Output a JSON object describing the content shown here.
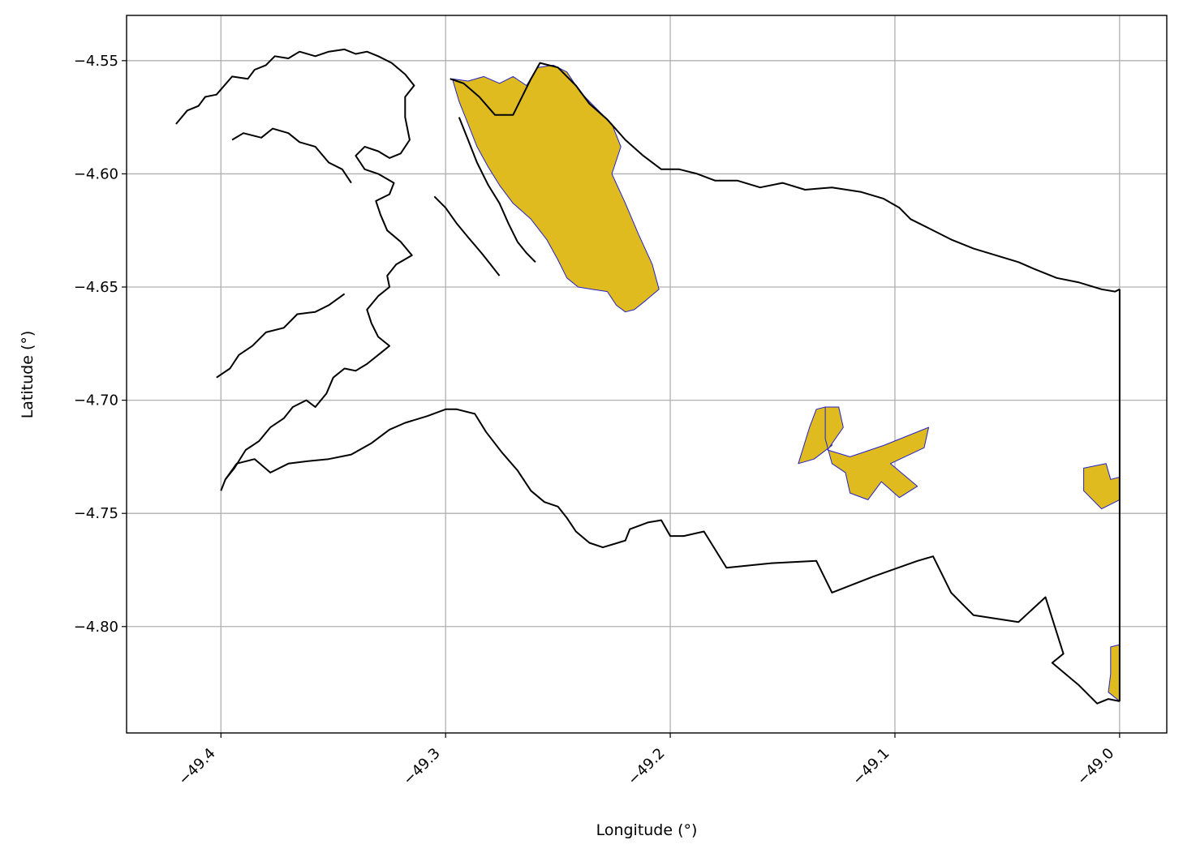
{
  "colors": {
    "polygon_fill": "#dfbb1f",
    "polygon_edge": "#2222cc",
    "outline": "#000000",
    "grid": "#b0b0b0"
  },
  "chart_data": {
    "type": "map",
    "xlabel": "Longitude (°)",
    "ylabel": "Latitude (°)",
    "xlim": [
      -49.442,
      -48.979
    ],
    "ylim": [
      -4.847,
      -4.53
    ],
    "grid": true,
    "x_ticks": [
      {
        "value": -49.4,
        "label": "−49.4"
      },
      {
        "value": -49.3,
        "label": "−49.3"
      },
      {
        "value": -49.2,
        "label": "−49.2"
      },
      {
        "value": -49.1,
        "label": "−49.1"
      },
      {
        "value": -49.0,
        "label": "−49.0"
      }
    ],
    "y_ticks": [
      {
        "value": -4.55,
        "label": "−4.55"
      },
      {
        "value": -4.6,
        "label": "−4.60"
      },
      {
        "value": -4.65,
        "label": "−4.65"
      },
      {
        "value": -4.7,
        "label": "−4.70"
      },
      {
        "value": -4.75,
        "label": "−4.75"
      },
      {
        "value": -4.8,
        "label": "−4.80"
      }
    ],
    "outlines": [
      {
        "name": "boundary-top",
        "points": [
          [
            -49.298,
            -4.558
          ],
          [
            -49.292,
            -4.56
          ],
          [
            -49.285,
            -4.566
          ],
          [
            -49.278,
            -4.574
          ],
          [
            -49.27,
            -4.574
          ],
          [
            -49.262,
            -4.558
          ],
          [
            -49.258,
            -4.551
          ],
          [
            -49.25,
            -4.553
          ],
          [
            -49.242,
            -4.561
          ],
          [
            -49.236,
            -4.569
          ],
          [
            -49.228,
            -4.576
          ],
          [
            -49.22,
            -4.585
          ],
          [
            -49.212,
            -4.592
          ],
          [
            -49.204,
            -4.598
          ],
          [
            -49.196,
            -4.598
          ],
          [
            -49.188,
            -4.6
          ],
          [
            -49.18,
            -4.603
          ],
          [
            -49.17,
            -4.603
          ],
          [
            -49.16,
            -4.606
          ],
          [
            -49.15,
            -4.604
          ],
          [
            -49.14,
            -4.607
          ],
          [
            -49.128,
            -4.606
          ],
          [
            -49.115,
            -4.608
          ],
          [
            -49.105,
            -4.611
          ],
          [
            -49.098,
            -4.615
          ],
          [
            -49.093,
            -4.62
          ],
          [
            -49.085,
            -4.624
          ],
          [
            -49.075,
            -4.629
          ],
          [
            -49.065,
            -4.633
          ],
          [
            -49.055,
            -4.636
          ],
          [
            -49.045,
            -4.639
          ],
          [
            -49.038,
            -4.642
          ],
          [
            -49.028,
            -4.646
          ],
          [
            -49.018,
            -4.648
          ],
          [
            -49.008,
            -4.651
          ],
          [
            -49.002,
            -4.652
          ],
          [
            -49.0,
            -4.651
          ]
        ]
      },
      {
        "name": "boundary-east",
        "points": [
          [
            -49.0,
            -4.651
          ],
          [
            -49.0,
            -4.833
          ]
        ]
      },
      {
        "name": "boundary-bottom",
        "points": [
          [
            -49.4,
            -4.74
          ],
          [
            -49.398,
            -4.735
          ],
          [
            -49.393,
            -4.728
          ],
          [
            -49.385,
            -4.726
          ],
          [
            -49.378,
            -4.732
          ],
          [
            -49.37,
            -4.728
          ],
          [
            -49.362,
            -4.727
          ],
          [
            -49.352,
            -4.726
          ],
          [
            -49.342,
            -4.724
          ],
          [
            -49.333,
            -4.719
          ],
          [
            -49.325,
            -4.713
          ],
          [
            -49.318,
            -4.71
          ],
          [
            -49.308,
            -4.707
          ],
          [
            -49.3,
            -4.704
          ],
          [
            -49.295,
            -4.704
          ],
          [
            -49.287,
            -4.706
          ],
          [
            -49.282,
            -4.714
          ],
          [
            -49.275,
            -4.723
          ],
          [
            -49.268,
            -4.731
          ],
          [
            -49.262,
            -4.74
          ],
          [
            -49.256,
            -4.745
          ],
          [
            -49.25,
            -4.747
          ],
          [
            -49.246,
            -4.752
          ],
          [
            -49.242,
            -4.758
          ],
          [
            -49.236,
            -4.763
          ],
          [
            -49.23,
            -4.765
          ],
          [
            -49.22,
            -4.762
          ],
          [
            -49.218,
            -4.757
          ],
          [
            -49.21,
            -4.754
          ],
          [
            -49.204,
            -4.753
          ],
          [
            -49.2,
            -4.76
          ],
          [
            -49.194,
            -4.76
          ],
          [
            -49.185,
            -4.758
          ],
          [
            -49.175,
            -4.774
          ],
          [
            -49.155,
            -4.772
          ],
          [
            -49.135,
            -4.771
          ],
          [
            -49.128,
            -4.785
          ],
          [
            -49.11,
            -4.778
          ],
          [
            -49.09,
            -4.771
          ],
          [
            -49.083,
            -4.769
          ],
          [
            -49.075,
            -4.785
          ],
          [
            -49.07,
            -4.79
          ],
          [
            -49.065,
            -4.795
          ],
          [
            -49.045,
            -4.798
          ],
          [
            -49.033,
            -4.787
          ],
          [
            -49.025,
            -4.812
          ],
          [
            -49.03,
            -4.816
          ],
          [
            -49.018,
            -4.826
          ],
          [
            -49.01,
            -4.834
          ],
          [
            -49.005,
            -4.832
          ],
          [
            -49.0,
            -4.833
          ]
        ]
      },
      {
        "name": "drainage-west",
        "points": [
          [
            -49.42,
            -4.578
          ],
          [
            -49.415,
            -4.572
          ],
          [
            -49.41,
            -4.57
          ],
          [
            -49.407,
            -4.566
          ],
          [
            -49.402,
            -4.565
          ],
          [
            -49.395,
            -4.557
          ],
          [
            -49.388,
            -4.558
          ],
          [
            -49.385,
            -4.554
          ],
          [
            -49.38,
            -4.552
          ],
          [
            -49.376,
            -4.548
          ],
          [
            -49.37,
            -4.549
          ],
          [
            -49.365,
            -4.546
          ],
          [
            -49.358,
            -4.548
          ],
          [
            -49.352,
            -4.546
          ],
          [
            -49.345,
            -4.545
          ],
          [
            -49.34,
            -4.547
          ],
          [
            -49.335,
            -4.546
          ],
          [
            -49.33,
            -4.548
          ],
          [
            -49.324,
            -4.551
          ],
          [
            -49.318,
            -4.556
          ],
          [
            -49.314,
            -4.561
          ],
          [
            -49.318,
            -4.566
          ],
          [
            -49.318,
            -4.575
          ],
          [
            -49.316,
            -4.585
          ],
          [
            -49.32,
            -4.591
          ],
          [
            -49.325,
            -4.593
          ],
          [
            -49.33,
            -4.59
          ],
          [
            -49.336,
            -4.588
          ],
          [
            -49.34,
            -4.592
          ],
          [
            -49.336,
            -4.598
          ],
          [
            -49.33,
            -4.6
          ],
          [
            -49.323,
            -4.604
          ],
          [
            -49.325,
            -4.609
          ],
          [
            -49.331,
            -4.612
          ],
          [
            -49.329,
            -4.618
          ],
          [
            -49.326,
            -4.625
          ],
          [
            -49.32,
            -4.63
          ],
          [
            -49.315,
            -4.636
          ],
          [
            -49.322,
            -4.64
          ],
          [
            -49.326,
            -4.645
          ],
          [
            -49.325,
            -4.65
          ],
          [
            -49.33,
            -4.654
          ],
          [
            -49.335,
            -4.66
          ],
          [
            -49.333,
            -4.666
          ],
          [
            -49.33,
            -4.672
          ],
          [
            -49.325,
            -4.676
          ],
          [
            -49.33,
            -4.68
          ],
          [
            -49.335,
            -4.684
          ],
          [
            -49.34,
            -4.687
          ],
          [
            -49.345,
            -4.686
          ],
          [
            -49.35,
            -4.69
          ],
          [
            -49.353,
            -4.697
          ],
          [
            -49.358,
            -4.703
          ],
          [
            -49.362,
            -4.7
          ],
          [
            -49.368,
            -4.703
          ],
          [
            -49.372,
            -4.708
          ],
          [
            -49.378,
            -4.712
          ],
          [
            -49.383,
            -4.718
          ],
          [
            -49.389,
            -4.722
          ],
          [
            -49.394,
            -4.73
          ],
          [
            -49.398,
            -4.735
          ]
        ]
      },
      {
        "name": "drainage-west-2",
        "points": [
          [
            -49.395,
            -4.585
          ],
          [
            -49.39,
            -4.582
          ],
          [
            -49.382,
            -4.584
          ],
          [
            -49.377,
            -4.58
          ],
          [
            -49.37,
            -4.582
          ],
          [
            -49.365,
            -4.586
          ],
          [
            -49.358,
            -4.588
          ],
          [
            -49.352,
            -4.595
          ],
          [
            -49.346,
            -4.598
          ],
          [
            -49.342,
            -4.604
          ]
        ]
      },
      {
        "name": "drainage-west-3",
        "points": [
          [
            -49.402,
            -4.69
          ],
          [
            -49.396,
            -4.686
          ],
          [
            -49.392,
            -4.68
          ],
          [
            -49.386,
            -4.676
          ],
          [
            -49.38,
            -4.67
          ],
          [
            -49.372,
            -4.668
          ],
          [
            -49.366,
            -4.662
          ],
          [
            -49.358,
            -4.661
          ],
          [
            -49.352,
            -4.658
          ],
          [
            -49.345,
            -4.653
          ]
        ]
      },
      {
        "name": "drainage-middle",
        "points": [
          [
            -49.294,
            -4.575
          ],
          [
            -49.29,
            -4.585
          ],
          [
            -49.286,
            -4.595
          ],
          [
            -49.281,
            -4.605
          ],
          [
            -49.276,
            -4.613
          ],
          [
            -49.272,
            -4.622
          ],
          [
            -49.268,
            -4.63
          ],
          [
            -49.264,
            -4.635
          ],
          [
            -49.26,
            -4.639
          ]
        ]
      },
      {
        "name": "drainage-middle-2",
        "points": [
          [
            -49.305,
            -4.61
          ],
          [
            -49.3,
            -4.615
          ],
          [
            -49.295,
            -4.622
          ],
          [
            -49.29,
            -4.628
          ],
          [
            -49.284,
            -4.635
          ],
          [
            -49.28,
            -4.64
          ],
          [
            -49.276,
            -4.645
          ]
        ]
      }
    ],
    "polygons": [
      {
        "name": "area-north",
        "points": [
          [
            -49.297,
            -4.558
          ],
          [
            -49.29,
            -4.559
          ],
          [
            -49.283,
            -4.557
          ],
          [
            -49.276,
            -4.56
          ],
          [
            -49.27,
            -4.557
          ],
          [
            -49.264,
            -4.561
          ],
          [
            -49.259,
            -4.553
          ],
          [
            -49.252,
            -4.552
          ],
          [
            -49.246,
            -4.555
          ],
          [
            -49.24,
            -4.564
          ],
          [
            -49.233,
            -4.571
          ],
          [
            -49.226,
            -4.578
          ],
          [
            -49.222,
            -4.588
          ],
          [
            -49.226,
            -4.6
          ],
          [
            -49.22,
            -4.613
          ],
          [
            -49.214,
            -4.627
          ],
          [
            -49.208,
            -4.64
          ],
          [
            -49.205,
            -4.651
          ],
          [
            -49.211,
            -4.656
          ],
          [
            -49.216,
            -4.66
          ],
          [
            -49.22,
            -4.661
          ],
          [
            -49.224,
            -4.658
          ],
          [
            -49.228,
            -4.652
          ],
          [
            -49.235,
            -4.651
          ],
          [
            -49.241,
            -4.65
          ],
          [
            -49.246,
            -4.646
          ],
          [
            -49.25,
            -4.638
          ],
          [
            -49.255,
            -4.629
          ],
          [
            -49.262,
            -4.62
          ],
          [
            -49.27,
            -4.613
          ],
          [
            -49.276,
            -4.605
          ],
          [
            -49.281,
            -4.597
          ],
          [
            -49.286,
            -4.588
          ],
          [
            -49.29,
            -4.578
          ],
          [
            -49.294,
            -4.568
          ],
          [
            -49.297,
            -4.558
          ]
        ]
      },
      {
        "name": "area-central-1",
        "points": [
          [
            -49.143,
            -4.728
          ],
          [
            -49.138,
            -4.712
          ],
          [
            -49.135,
            -4.704
          ],
          [
            -49.131,
            -4.703
          ],
          [
            -49.128,
            -4.72
          ],
          [
            -49.136,
            -4.726
          ],
          [
            -49.143,
            -4.728
          ]
        ]
      },
      {
        "name": "area-central-2",
        "points": [
          [
            -49.131,
            -4.703
          ],
          [
            -49.125,
            -4.703
          ],
          [
            -49.123,
            -4.712
          ],
          [
            -49.13,
            -4.722
          ],
          [
            -49.12,
            -4.725
          ],
          [
            -49.105,
            -4.72
          ],
          [
            -49.085,
            -4.712
          ],
          [
            -49.087,
            -4.721
          ],
          [
            -49.102,
            -4.728
          ],
          [
            -49.09,
            -4.738
          ],
          [
            -49.098,
            -4.743
          ],
          [
            -49.106,
            -4.736
          ],
          [
            -49.112,
            -4.744
          ],
          [
            -49.12,
            -4.741
          ],
          [
            -49.122,
            -4.732
          ],
          [
            -49.128,
            -4.728
          ],
          [
            -49.131,
            -4.717
          ],
          [
            -49.131,
            -4.703
          ]
        ]
      },
      {
        "name": "area-east",
        "points": [
          [
            -49.016,
            -4.73
          ],
          [
            -49.006,
            -4.728
          ],
          [
            -49.004,
            -4.735
          ],
          [
            -49.0,
            -4.734
          ],
          [
            -49.0,
            -4.744
          ],
          [
            -49.008,
            -4.748
          ],
          [
            -49.016,
            -4.74
          ],
          [
            -49.016,
            -4.73
          ]
        ]
      },
      {
        "name": "area-southeast",
        "points": [
          [
            -49.004,
            -4.809
          ],
          [
            -49.0,
            -4.808
          ],
          [
            -49.0,
            -4.833
          ],
          [
            -49.005,
            -4.829
          ],
          [
            -49.004,
            -4.821
          ],
          [
            -49.004,
            -4.809
          ]
        ]
      }
    ]
  }
}
